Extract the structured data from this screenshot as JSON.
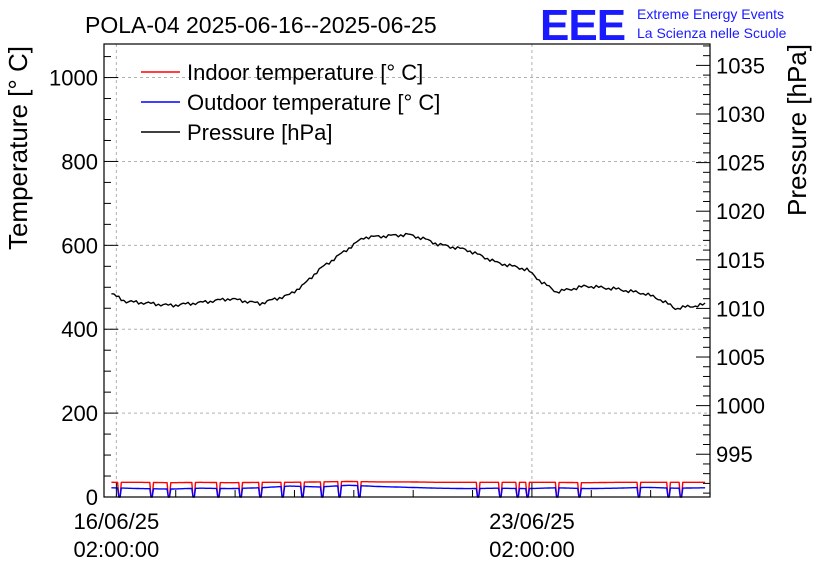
{
  "header": {
    "title": "POLA-04 2025-06-16--2025-06-25",
    "logo_text": "EEE",
    "org_line1": "Extreme Energy Events",
    "org_line2": "La Scienza nelle Scuole"
  },
  "colors": {
    "indoor": "#ff0000",
    "outdoor": "#0000ff",
    "pressure": "#000000",
    "logo": "#1a1aff",
    "grid": "#b0b0b0"
  },
  "chart_data": {
    "type": "line",
    "title": "POLA-04 2025-06-16--2025-06-25",
    "ylabel": "Temperature [° C]",
    "y2label": "Pressure [hPa]",
    "ylim": [
      0,
      1080
    ],
    "y2lim": [
      990.6,
      1037.2
    ],
    "yticks": [
      0,
      200,
      400,
      600,
      800,
      1000
    ],
    "y2ticks": [
      995,
      1000,
      1005,
      1010,
      1015,
      1020,
      1025,
      1030,
      1035
    ],
    "xlim": [
      "2025-06-15T21:00:00",
      "2025-06-26T02:00:00"
    ],
    "xticks": [
      {
        "x": "2025-06-16T02:00:00",
        "date": "16/06/25",
        "time": "02:00:00"
      },
      {
        "x": "2025-06-23T02:00:00",
        "date": "23/06/25",
        "time": "02:00:00"
      }
    ],
    "grid": true,
    "legend_position": "top-left",
    "legend": [
      "Indoor temperature [° C]",
      "Outdoor temperature [° C]",
      "Pressure [hPa]"
    ],
    "series": [
      {
        "name": "Indoor temperature [° C]",
        "axis": "left",
        "x": [
          "2025-06-16T00:00",
          "2025-06-16T12:00",
          "2025-06-17T00:00",
          "2025-06-17T12:00",
          "2025-06-18T00:00",
          "2025-06-18T12:00",
          "2025-06-19T00:00",
          "2025-06-19T12:00",
          "2025-06-20T00:00",
          "2025-06-20T12:00",
          "2025-06-21T00:00",
          "2025-06-21T12:00",
          "2025-06-22T00:00",
          "2025-06-22T12:00",
          "2025-06-23T00:00",
          "2025-06-23T12:00",
          "2025-06-24T00:00",
          "2025-06-24T12:00",
          "2025-06-25T00:00",
          "2025-06-25T12:00",
          "2025-06-26T00:00"
        ],
        "values": [
          35,
          35,
          34,
          35,
          34,
          35,
          35,
          36,
          37,
          36,
          36,
          35,
          35,
          35,
          35,
          35,
          34,
          35,
          35,
          35,
          35
        ]
      },
      {
        "name": "Outdoor temperature [° C]",
        "axis": "left",
        "x": [
          "2025-06-16T00:00",
          "2025-06-16T12:00",
          "2025-06-17T00:00",
          "2025-06-17T12:00",
          "2025-06-18T00:00",
          "2025-06-18T12:00",
          "2025-06-19T00:00",
          "2025-06-19T12:00",
          "2025-06-20T00:00",
          "2025-06-20T12:00",
          "2025-06-21T00:00",
          "2025-06-21T12:00",
          "2025-06-22T00:00",
          "2025-06-22T12:00",
          "2025-06-23T00:00",
          "2025-06-23T12:00",
          "2025-06-24T00:00",
          "2025-06-24T12:00",
          "2025-06-25T00:00",
          "2025-06-25T12:00",
          "2025-06-26T00:00"
        ],
        "values": [
          22,
          20,
          19,
          21,
          20,
          22,
          26,
          24,
          28,
          25,
          23,
          21,
          20,
          21,
          20,
          22,
          20,
          21,
          23,
          21,
          22
        ]
      },
      {
        "name": "Pressure [hPa]",
        "axis": "right",
        "x": [
          "2025-06-16T00:00",
          "2025-06-16T06:00",
          "2025-06-16T12:00",
          "2025-06-17T00:00",
          "2025-06-17T12:00",
          "2025-06-18T00:00",
          "2025-06-18T12:00",
          "2025-06-19T00:00",
          "2025-06-19T06:00",
          "2025-06-19T12:00",
          "2025-06-20T00:00",
          "2025-06-20T06:00",
          "2025-06-20T12:00",
          "2025-06-21T00:00",
          "2025-06-21T06:00",
          "2025-06-21T12:00",
          "2025-06-22T00:00",
          "2025-06-22T12:00",
          "2025-06-23T00:00",
          "2025-06-23T06:00",
          "2025-06-23T12:00",
          "2025-06-24T00:00",
          "2025-06-24T12:00",
          "2025-06-25T00:00",
          "2025-06-25T06:00",
          "2025-06-25T12:00",
          "2025-06-26T00:00"
        ],
        "values": [
          1011.5,
          1010.7,
          1010.6,
          1010.3,
          1010.6,
          1011.0,
          1010.5,
          1011.4,
          1012.5,
          1014.0,
          1016.2,
          1017.3,
          1017.4,
          1017.6,
          1017.2,
          1016.6,
          1016.0,
          1014.7,
          1014.0,
          1012.7,
          1011.7,
          1012.3,
          1012.0,
          1011.5,
          1010.9,
          1010.0,
          1010.4
        ]
      }
    ],
    "power_gaps": [
      [
        "2025-06-16T03:00",
        "2025-06-16T04:00"
      ],
      [
        "2025-06-16T16:00",
        "2025-06-16T17:00"
      ],
      [
        "2025-06-16T23:00",
        "2025-06-17T00:00"
      ],
      [
        "2025-06-17T09:00",
        "2025-06-17T10:00"
      ],
      [
        "2025-06-17T19:00",
        "2025-06-17T20:00"
      ],
      [
        "2025-06-18T04:00",
        "2025-06-18T05:00"
      ],
      [
        "2025-06-18T12:00",
        "2025-06-18T13:00"
      ],
      [
        "2025-06-18T21:00",
        "2025-06-18T22:00"
      ],
      [
        "2025-06-19T05:00",
        "2025-06-19T06:00"
      ],
      [
        "2025-06-19T13:00",
        "2025-06-19T14:00"
      ],
      [
        "2025-06-19T20:00",
        "2025-06-19T21:00"
      ],
      [
        "2025-06-20T04:00",
        "2025-06-20T05:00"
      ],
      [
        "2025-06-22T04:00",
        "2025-06-22T05:00"
      ],
      [
        "2025-06-22T13:00",
        "2025-06-22T14:00"
      ],
      [
        "2025-06-22T20:00",
        "2025-06-22T21:00"
      ],
      [
        "2025-06-23T00:00",
        "2025-06-23T01:00"
      ],
      [
        "2025-06-23T12:00",
        "2025-06-23T13:00"
      ],
      [
        "2025-06-23T21:00",
        "2025-06-23T22:00"
      ],
      [
        "2025-06-24T21:00",
        "2025-06-24T22:00"
      ],
      [
        "2025-06-25T09:00",
        "2025-06-25T10:00"
      ],
      [
        "2025-06-25T14:00",
        "2025-06-25T15:00"
      ]
    ]
  }
}
